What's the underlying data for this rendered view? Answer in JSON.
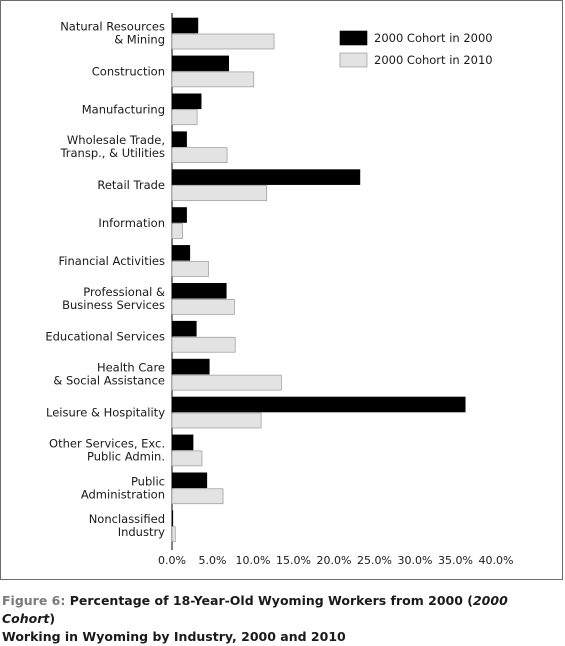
{
  "chart_data": {
    "type": "bar",
    "orientation": "horizontal",
    "categories": [
      [
        "Natural Resources",
        "& Mining"
      ],
      [
        "Construction"
      ],
      [
        "Manufacturing"
      ],
      [
        "Wholesale Trade,",
        "Transp., & Utilities"
      ],
      [
        "Retail Trade"
      ],
      [
        "Information"
      ],
      [
        "Financial Activities"
      ],
      [
        "Professional &",
        "Business Services"
      ],
      [
        "Educational Services"
      ],
      [
        "Health Care",
        "& Social Assistance"
      ],
      [
        "Leisure & Hospitality"
      ],
      [
        "Other Services, Exc.",
        "Public Admin."
      ],
      [
        "Public",
        "Administration"
      ],
      [
        "Nonclassified",
        "Industry"
      ]
    ],
    "series": [
      {
        "name": "2000 Cohort in 2000",
        "color": "#000000",
        "values": [
          3.2,
          7.0,
          3.6,
          1.8,
          23.2,
          1.8,
          2.2,
          6.7,
          3.0,
          4.6,
          36.2,
          2.6,
          4.3,
          0.1
        ]
      },
      {
        "name": "2000 Cohort in 2010",
        "color": "#e3e3e3",
        "values": [
          12.6,
          10.1,
          3.1,
          6.8,
          11.7,
          1.3,
          4.5,
          7.7,
          7.8,
          13.5,
          11.0,
          3.7,
          6.3,
          0.4
        ]
      }
    ],
    "xlim": [
      0,
      40
    ],
    "x_ticks": [
      "0.0%",
      "5.0%",
      "10.0%",
      "15.0%",
      "20.0%",
      "25.0%",
      "30.0%",
      "35.0%",
      "40.0%"
    ],
    "legend_position": "top-right",
    "grid": false
  },
  "caption": {
    "figure_number": "Figure 6:",
    "text_before_em": "Percentage of 18-Year-Old Wyoming Workers from 2000 (",
    "em_text": "2000 Cohort",
    "text_after_em": ")",
    "line2": "Working in Wyoming by Industry, 2000 and 2010"
  }
}
